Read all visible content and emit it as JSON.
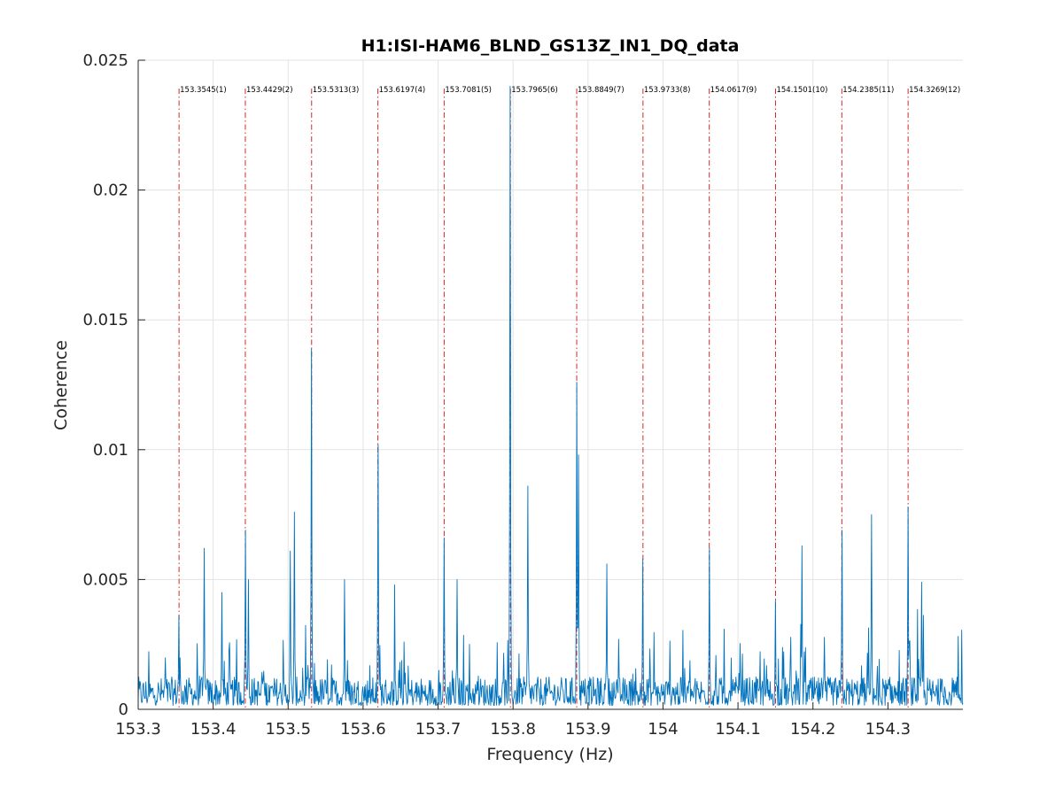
{
  "chart_data": {
    "type": "line",
    "title": "H1:ISI-HAM6_BLND_GS13Z_IN1_DQ_data",
    "xlabel": "Frequency (Hz)",
    "ylabel": "Coherence",
    "xlim": [
      153.3,
      154.4
    ],
    "ylim": [
      0,
      0.025
    ],
    "x_ticks": [
      153.3,
      153.4,
      153.5,
      153.6,
      153.7,
      153.8,
      153.9,
      154.0,
      154.1,
      154.2,
      154.3
    ],
    "x_tick_labels": [
      "153.3",
      "153.4",
      "153.5",
      "153.6",
      "153.7",
      "153.8",
      "153.9",
      "154",
      "154.1",
      "154.2",
      "154.3"
    ],
    "y_ticks": [
      0,
      0.005,
      0.01,
      0.015,
      0.02,
      0.025
    ],
    "y_tick_labels": [
      "0",
      "0.005",
      "0.01",
      "0.015",
      "0.02",
      "0.025"
    ],
    "grid": true,
    "line_color": "#0072BD",
    "marker_color": "#D62728",
    "noise_floor": {
      "level": 0.001,
      "spread": 0.0025
    },
    "series": [
      {
        "peaks": [
          {
            "x": 153.3545,
            "y": 0.0036
          },
          {
            "x": 153.388,
            "y": 0.0062
          },
          {
            "x": 153.412,
            "y": 0.0045
          },
          {
            "x": 153.4429,
            "y": 0.0069
          },
          {
            "x": 153.447,
            "y": 0.005
          },
          {
            "x": 153.503,
            "y": 0.0061
          },
          {
            "x": 153.508,
            "y": 0.0076
          },
          {
            "x": 153.5313,
            "y": 0.0139
          },
          {
            "x": 153.575,
            "y": 0.005
          },
          {
            "x": 153.6197,
            "y": 0.0102
          },
          {
            "x": 153.7081,
            "y": 0.0066
          },
          {
            "x": 153.725,
            "y": 0.005
          },
          {
            "x": 153.7965,
            "y": 0.024
          },
          {
            "x": 153.8195,
            "y": 0.0086
          },
          {
            "x": 153.8849,
            "y": 0.0126
          },
          {
            "x": 153.887,
            "y": 0.0098
          },
          {
            "x": 153.925,
            "y": 0.0056
          },
          {
            "x": 153.9733,
            "y": 0.0058
          },
          {
            "x": 154.0617,
            "y": 0.0062
          },
          {
            "x": 154.1501,
            "y": 0.0042
          },
          {
            "x": 154.185,
            "y": 0.0063
          },
          {
            "x": 154.2385,
            "y": 0.0069
          },
          {
            "x": 154.278,
            "y": 0.0075
          },
          {
            "x": 154.3269,
            "y": 0.0078
          },
          {
            "x": 154.345,
            "y": 0.0049
          }
        ]
      }
    ],
    "markers": [
      {
        "x": 153.3545,
        "label": "153.3545(1)"
      },
      {
        "x": 153.4429,
        "label": "153.4429(2)"
      },
      {
        "x": 153.5313,
        "label": "153.5313(3)"
      },
      {
        "x": 153.6197,
        "label": "153.6197(4)"
      },
      {
        "x": 153.7081,
        "label": "153.7081(5)"
      },
      {
        "x": 153.7965,
        "label": "153.7965(6)"
      },
      {
        "x": 153.8849,
        "label": "153.8849(7)"
      },
      {
        "x": 153.9733,
        "label": "153.9733(8)"
      },
      {
        "x": 154.0617,
        "label": "154.0617(9)"
      },
      {
        "x": 154.1501,
        "label": "154.1501(10)"
      },
      {
        "x": 154.2385,
        "label": "154.2385(11)"
      },
      {
        "x": 154.3269,
        "label": "154.3269(12)"
      }
    ]
  }
}
